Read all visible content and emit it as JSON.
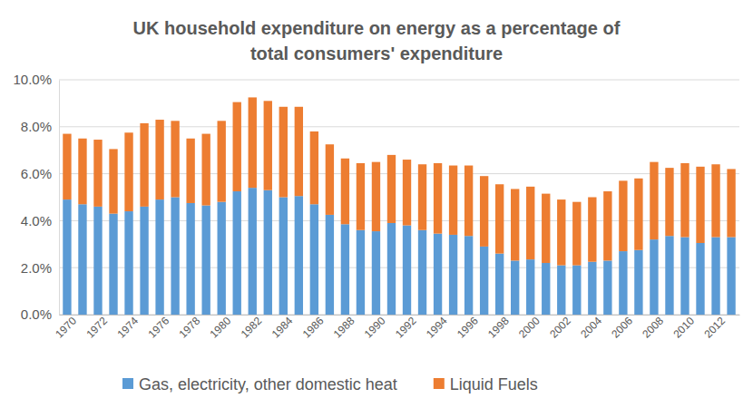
{
  "chart_data": {
    "type": "bar",
    "title": "UK household expenditure on energy as a percentage of total consumers' expenditure",
    "stacked": true,
    "grid": true,
    "legend": "bottom",
    "categories": [
      "1970",
      null,
      "1972",
      null,
      "1974",
      null,
      "1976",
      null,
      "1978",
      null,
      "1980",
      null,
      "1982",
      null,
      "1984",
      null,
      "1986",
      null,
      "1988",
      null,
      "1990",
      null,
      "1992",
      null,
      "1994",
      null,
      "1996",
      null,
      "1998",
      null,
      "2000",
      null,
      "2002",
      null,
      "2004",
      null,
      "2006",
      null,
      "2008",
      null,
      "2010",
      null,
      "2012",
      null
    ],
    "series": [
      {
        "name": "Gas, electricity, other domestic heat",
        "color": "#5b9bd5",
        "values": [
          4.9,
          4.7,
          4.6,
          4.3,
          4.4,
          4.6,
          4.9,
          5.0,
          4.75,
          4.65,
          4.8,
          5.25,
          5.4,
          5.3,
          5.0,
          5.05,
          4.7,
          4.25,
          3.85,
          3.6,
          3.55,
          3.9,
          3.8,
          3.6,
          3.45,
          3.4,
          3.35,
          2.9,
          2.6,
          2.3,
          2.35,
          2.2,
          2.1,
          2.1,
          2.25,
          2.3,
          2.7,
          2.75,
          3.2,
          3.35,
          3.3,
          3.05,
          3.3,
          3.3
        ]
      },
      {
        "name": "Liquid Fuels",
        "color": "#ed7d31",
        "values": [
          2.8,
          2.8,
          2.85,
          2.75,
          3.35,
          3.55,
          3.4,
          3.25,
          2.75,
          3.05,
          3.45,
          3.8,
          3.85,
          3.8,
          3.85,
          3.8,
          3.1,
          3.0,
          2.8,
          2.85,
          2.95,
          2.9,
          2.8,
          2.8,
          3.0,
          2.95,
          3.0,
          3.0,
          2.95,
          3.05,
          3.1,
          2.95,
          2.8,
          2.7,
          2.75,
          2.95,
          3.0,
          3.05,
          3.3,
          2.9,
          3.15,
          3.25,
          3.1,
          2.9
        ]
      }
    ],
    "ylim": [
      0,
      10
    ],
    "yticks": [
      {
        "value": 0,
        "label": "0.0%"
      },
      {
        "value": 2,
        "label": "2.0%"
      },
      {
        "value": 4,
        "label": "4.0%"
      },
      {
        "value": 6,
        "label": "6.0%"
      },
      {
        "value": 8,
        "label": "8.0%"
      },
      {
        "value": 10,
        "label": "10.0%"
      }
    ]
  }
}
